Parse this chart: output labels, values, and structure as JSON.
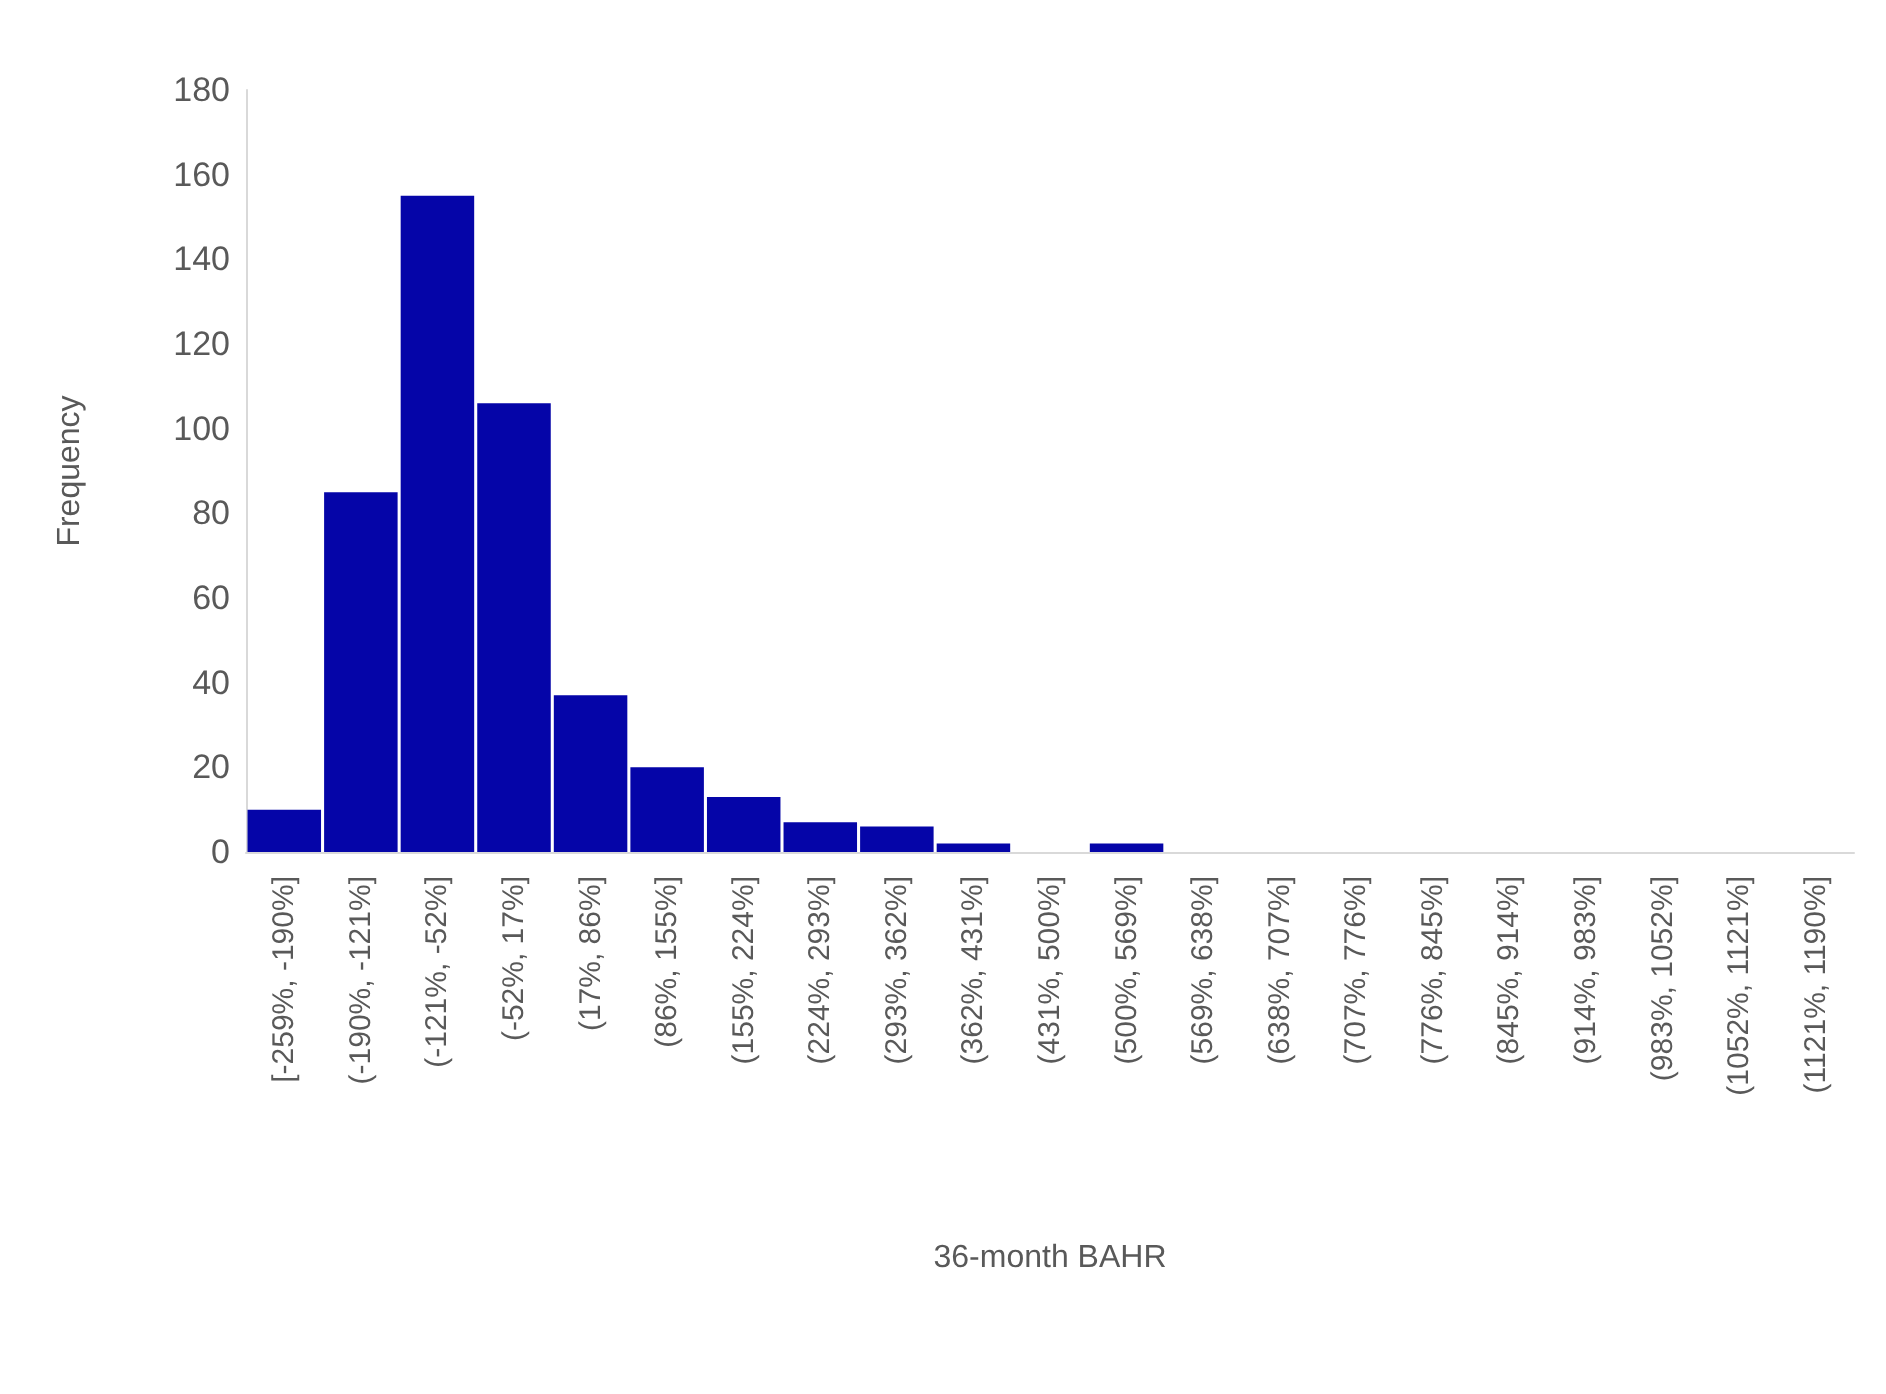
{
  "chart_data": {
    "type": "bar",
    "xlabel": "36-month BAHR",
    "ylabel": "Frequency",
    "categories": [
      "[-259%, -190%]",
      "(-190%, -121%]",
      "(-121%, -52%]",
      "(-52%, 17%]",
      "(17%, 86%]",
      "(86%, 155%]",
      "(155%, 224%]",
      "(224%, 293%]",
      "(293%, 362%]",
      "(362%, 431%]",
      "(431%, 500%]",
      "(500%, 569%]",
      "(569%, 638%]",
      "(638%, 707%]",
      "(707%, 776%]",
      "(776%, 845%]",
      "(845%, 914%]",
      "(914%, 983%]",
      "(983%, 1052%]",
      "(1052%, 1121%]",
      "(1121%, 1190%]"
    ],
    "values": [
      10,
      85,
      155,
      106,
      37,
      20,
      13,
      7,
      6,
      2,
      0,
      2,
      0,
      0,
      0,
      0,
      0,
      0,
      0,
      0,
      0
    ],
    "color": "#0505a8",
    "ylim": [
      0,
      180
    ],
    "yticks": [
      0,
      20,
      40,
      60,
      80,
      100,
      120,
      140,
      160,
      180
    ],
    "grid": false
  }
}
